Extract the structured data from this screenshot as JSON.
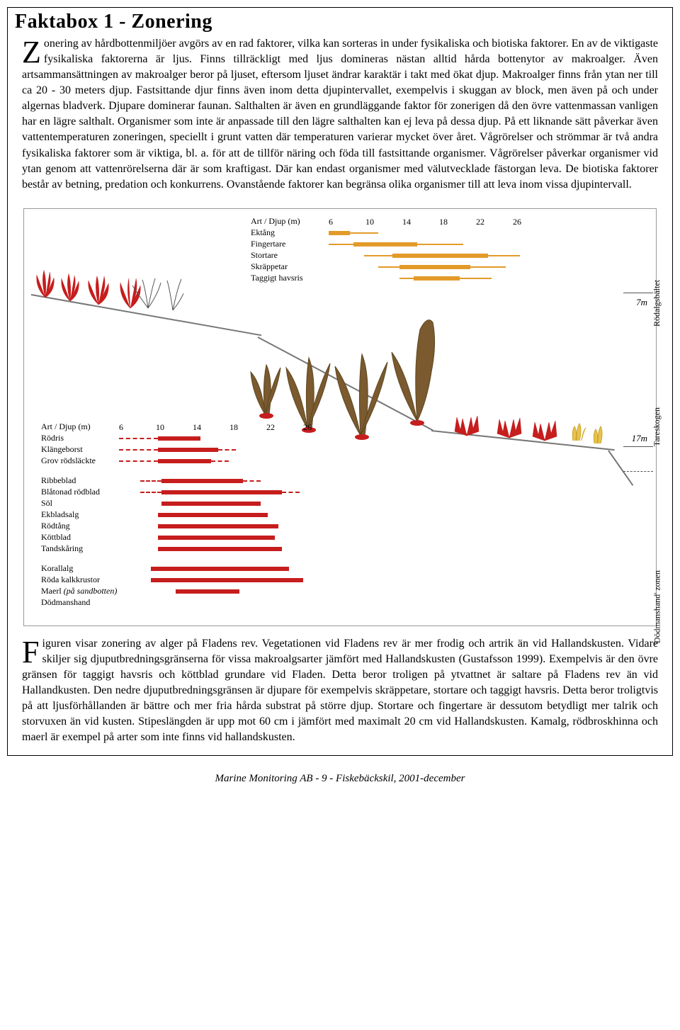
{
  "title": "Faktabox 1 - Zonering",
  "para1_dropcap": "Z",
  "para1_text": "onering av hårdbottenmiljöer avgörs av en rad faktorer, vilka kan sorteras in under fysikaliska och biotiska faktorer. En av de viktigaste fysikaliska faktorerna är ljus. Finns tillräckligt med ljus domineras nästan alltid hårda bottenytor av makroalger. Även artsammansättningen av makroalger beror på ljuset, eftersom ljuset ändrar karaktär i takt med ökat djup. Makroalger finns från ytan ner till ca 20 - 30 meters djup. Fastsittande djur finns även inom detta djupintervallet, exempelvis i skuggan av block, men även på och under algernas bladverk. Djupare dominerar faunan. Salthalten är även en grundläggande faktor för zonerigen då den övre vattenmassan vanligen har en lägre salthalt. Organismer som inte är anpassade till den lägre salthalten kan ej leva på dessa djup. På ett liknande sätt påverkar även vattentemperaturen zoneringen, speciellt i grunt vatten där temperaturen varierar mycket över året. Vågrörelser och strömmar är två andra fysikaliska faktorer som är viktiga, bl. a. för att de tillför näring och föda till fastsittande organismer. Vågrörelser påverkar organismer vid ytan genom att vattenrörelserna där är som kraftigast. Där kan endast organismer med välutvecklade fästorgan leva.  De biotiska faktorer består av betning, predation  och konkurrens. Ovanstående faktorer kan begränsa olika organismer till att leva inom vissa djupintervall.",
  "para2_dropcap": "F",
  "para2_text": "iguren visar zonering av alger på Fladens rev. Vegetationen vid Fladens rev är mer frodig och artrik än vid Hallandskusten. Vidare skiljer sig djuputbredningsgränserna för vissa makroalgsarter jämfört med Hallandskusten (Gustafsson 1999). Exempelvis är den övre gränsen för taggigt havsris och köttblad grundare vid Fladen. Detta beror troligen på ytvattnet är saltare på Fladens rev än vid Hallandkusten. Den nedre djuputbredningsgränsen är djupare för exempelvis skräppetare, stortare och taggigt havsris. Detta beror troligtvis på att ljusförhållanden är bättre och mer fria hårda substrat på större djup. Stortare och fingertare är dessutom betydligt mer talrik och storvuxen än vid kusten. Stipeslängden är upp mot 60 cm i jämfört med maximalt 20 cm vid Hallandskusten. Kamalg, rödbroskhinna och maerl är exempel på arter som inte finns vid hallandskusten.",
  "footer": "Marine Monitoring AB  -  9  -  Fiskebäckskil, 2001-december",
  "figure": {
    "brown_color": "#e39a2a",
    "red_color": "#c61d1d",
    "zone_labels": [
      "Rödalgsbältet",
      "Tareskogen",
      "'Dödmanshand'  zonen"
    ],
    "depth_marks": [
      "7m",
      "17m"
    ],
    "chart_top": {
      "header": "Art  /  Djup (m)",
      "ticks": [
        "6",
        "10",
        "14",
        "18",
        "22",
        "26"
      ],
      "rows": [
        {
          "label": "Ektång",
          "thin": [
            0,
            70
          ],
          "thick": [
            0,
            30
          ]
        },
        {
          "label": "Fingertare",
          "thin": [
            0,
            190
          ],
          "thick": [
            35,
            125
          ]
        },
        {
          "label": "Stortare",
          "thin": [
            50,
            270
          ],
          "thick": [
            90,
            225
          ]
        },
        {
          "label": "Skräppetar",
          "thin": [
            70,
            250
          ],
          "thick": [
            100,
            200
          ]
        },
        {
          "label": "Taggigt havsris",
          "thin": [
            100,
            230
          ],
          "thick": [
            120,
            185
          ]
        }
      ]
    },
    "chart_bottom": {
      "header": "Art  /  Djup (m)",
      "ticks": [
        "6",
        "10",
        "14",
        "18",
        "22",
        "26"
      ],
      "rows": [
        {
          "label": "Rödris",
          "dashed_pre": [
            0,
            55
          ],
          "thick": [
            55,
            115
          ],
          "dashed_post": null
        },
        {
          "label": "Klängeborst",
          "dashed_pre": [
            0,
            55
          ],
          "thick": [
            55,
            140
          ],
          "dashed_post": [
            140,
            165
          ]
        },
        {
          "label": "Grov rödsläckte",
          "dashed_pre": [
            0,
            55
          ],
          "thick": [
            55,
            130
          ],
          "dashed_post": [
            130,
            155
          ]
        },
        {
          "label": "Ribbeblad",
          "dashed_pre": [
            30,
            60
          ],
          "thick": [
            60,
            175
          ],
          "dashed_post": [
            175,
            200
          ]
        },
        {
          "label": "Blåtonad rödblad",
          "dashed_pre": [
            30,
            60
          ],
          "thick": [
            60,
            230
          ],
          "dashed_post": [
            230,
            255
          ]
        },
        {
          "label": "Söl",
          "dashed_pre": null,
          "thick": [
            60,
            200
          ],
          "dashed_post": null
        },
        {
          "label": "Ekbladsalg",
          "dashed_pre": null,
          "thick": [
            55,
            210
          ],
          "dashed_post": null
        },
        {
          "label": "Rödtång",
          "dashed_pre": null,
          "thick": [
            55,
            225
          ],
          "dashed_post": null
        },
        {
          "label": "Köttblad",
          "dashed_pre": null,
          "thick": [
            55,
            220
          ],
          "dashed_post": null
        },
        {
          "label": "Tandskåring",
          "dashed_pre": null,
          "thick": [
            55,
            230
          ],
          "dashed_post": null
        },
        {
          "label": "Korallalg",
          "dashed_pre": null,
          "thick": [
            45,
            240
          ],
          "dashed_post": null
        },
        {
          "label": "Röda kalkkrustor",
          "dashed_pre": null,
          "thick": [
            45,
            260
          ],
          "dashed_post": null
        },
        {
          "label": "Maerl (på sandbotten)",
          "dashed_pre": null,
          "thick": [
            80,
            170
          ],
          "dashed_post": null
        },
        {
          "label": "Dödmanshand",
          "dashed_pre": null,
          "thick": null,
          "dashed_post": null
        }
      ],
      "extra_gap_after": [
        2,
        9
      ]
    }
  }
}
